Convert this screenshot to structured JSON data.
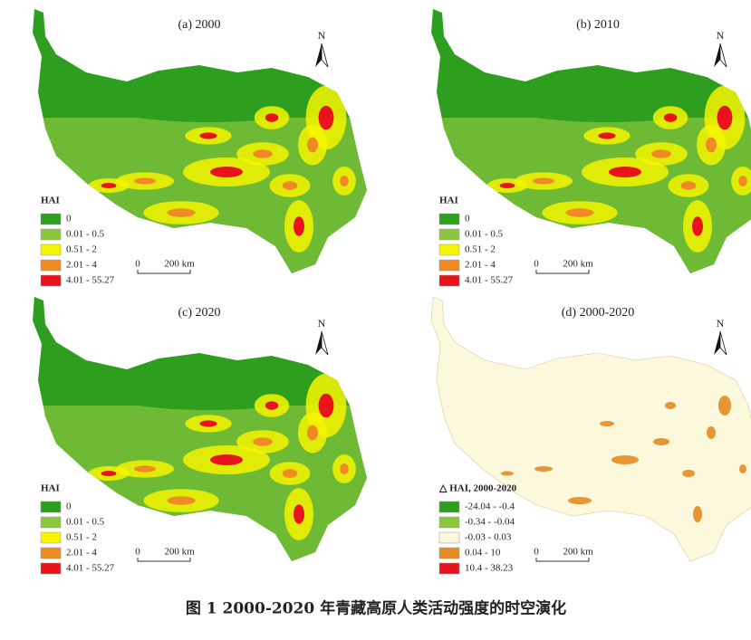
{
  "panels": [
    {
      "title": "(a) 2000",
      "north": "N",
      "legend_title": "HAI",
      "legend": [
        {
          "label": "0",
          "color": "#2e9e1e"
        },
        {
          "label": "0.01 - 0.5",
          "color": "#8cc63f"
        },
        {
          "label": "0.51 - 2",
          "color": "#f5f500"
        },
        {
          "label": "2.01 - 4",
          "color": "#f08a24"
        },
        {
          "label": "4.01 - 55.27",
          "color": "#e8141c"
        }
      ],
      "scale": [
        "0",
        "200 km"
      ]
    },
    {
      "title": "(b) 2010",
      "north": "N",
      "legend_title": "HAI",
      "legend": [
        {
          "label": "0",
          "color": "#2e9e1e"
        },
        {
          "label": "0.01 - 0.5",
          "color": "#8cc63f"
        },
        {
          "label": "0.51 - 2",
          "color": "#f5f500"
        },
        {
          "label": "2.01 - 4",
          "color": "#f08a24"
        },
        {
          "label": "4.01 - 55.27",
          "color": "#e8141c"
        }
      ],
      "scale": [
        "0",
        "200 km"
      ]
    },
    {
      "title": "(c) 2020",
      "north": "N",
      "legend_title": "HAI",
      "legend": [
        {
          "label": "0",
          "color": "#2e9e1e"
        },
        {
          "label": "0.01 - 0.5",
          "color": "#8cc63f"
        },
        {
          "label": "0.51 - 2",
          "color": "#f5f500"
        },
        {
          "label": "2.01 - 4",
          "color": "#f08a24"
        },
        {
          "label": "4.01 - 55.27",
          "color": "#e8141c"
        }
      ],
      "scale": [
        "0",
        "200 km"
      ]
    },
    {
      "title": "(d) 2000-2020",
      "north": "N",
      "legend_title": "△ HAI, 2000-2020",
      "legend": [
        {
          "label": "-24.04 - -0.4",
          "color": "#2e9e1e"
        },
        {
          "label": "-0.34 - -0.04",
          "color": "#8cc63f"
        },
        {
          "label": "-0.03 - 0.03",
          "color": "#fbf8dc"
        },
        {
          "label": "0.04 - 10",
          "color": "#e58a24"
        },
        {
          "label": "10.4 - 38.23",
          "color": "#e8141c"
        }
      ],
      "scale": [
        "0",
        "200 km"
      ]
    }
  ],
  "caption": "图 1 2000-2020 年青藏高原人类活动强度的时空演化"
}
